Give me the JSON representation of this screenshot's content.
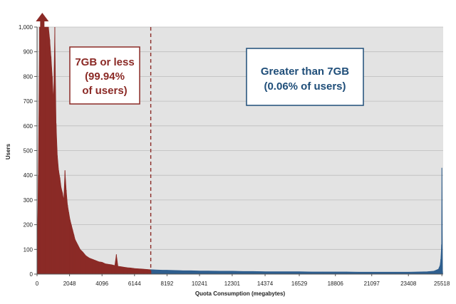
{
  "chart_data": {
    "type": "bar",
    "xlabel": "Quota Consumption (megabytes)",
    "ylabel": "Users",
    "xlim": [
      0,
      25600
    ],
    "ylim": [
      0,
      1000
    ],
    "grid": true,
    "x_tick_labels": [
      "0",
      "2048",
      "4096",
      "6144",
      "8192",
      "10241",
      "12301",
      "14374",
      "16529",
      "18806",
      "21097",
      "23408",
      "25518"
    ],
    "y_tick_labels": [
      "0",
      "100",
      "200",
      "300",
      "400",
      "500",
      "600",
      "700",
      "800",
      "900",
      "1,000"
    ],
    "threshold_mb": 7168,
    "overflow_arrow_at_mb": 330,
    "series": [
      {
        "color": "#8b2a26",
        "points": [
          [
            0,
            20
          ],
          [
            80,
            400
          ],
          [
            160,
            1000
          ],
          [
            240,
            1000
          ],
          [
            320,
            1000
          ],
          [
            400,
            1000
          ],
          [
            480,
            1000
          ],
          [
            560,
            1000
          ],
          [
            640,
            1000
          ],
          [
            720,
            1000
          ],
          [
            800,
            950
          ],
          [
            880,
            880
          ],
          [
            960,
            800
          ],
          [
            1040,
            700
          ],
          [
            1120,
            1000
          ],
          [
            1200,
            610
          ],
          [
            1280,
            480
          ],
          [
            1360,
            420
          ],
          [
            1440,
            390
          ],
          [
            1520,
            350
          ],
          [
            1600,
            330
          ],
          [
            1680,
            300
          ],
          [
            1760,
            420
          ],
          [
            1840,
            340
          ],
          [
            1920,
            280
          ],
          [
            2000,
            250
          ],
          [
            2080,
            220
          ],
          [
            2160,
            200
          ],
          [
            2240,
            180
          ],
          [
            2320,
            160
          ],
          [
            2400,
            140
          ],
          [
            2560,
            120
          ],
          [
            2720,
            100
          ],
          [
            2880,
            90
          ],
          [
            3072,
            75
          ],
          [
            3300,
            65
          ],
          [
            3500,
            60
          ],
          [
            3700,
            55
          ],
          [
            3900,
            50
          ],
          [
            4096,
            48
          ],
          [
            4300,
            42
          ],
          [
            4500,
            40
          ],
          [
            4700,
            38
          ],
          [
            4900,
            35
          ],
          [
            5000,
            80
          ],
          [
            5100,
            32
          ],
          [
            5300,
            30
          ],
          [
            5500,
            28
          ],
          [
            5700,
            26
          ],
          [
            5900,
            25
          ],
          [
            6144,
            23
          ],
          [
            6350,
            22
          ],
          [
            6550,
            21
          ],
          [
            6750,
            20
          ],
          [
            6950,
            19
          ],
          [
            7168,
            18
          ]
        ]
      },
      {
        "color": "#2e5e8e",
        "points": [
          [
            7168,
            18
          ],
          [
            7500,
            17
          ],
          [
            7900,
            16
          ],
          [
            8192,
            16
          ],
          [
            8700,
            15
          ],
          [
            9200,
            14
          ],
          [
            9700,
            14
          ],
          [
            10241,
            13
          ],
          [
            10800,
            13
          ],
          [
            11500,
            12
          ],
          [
            12301,
            12
          ],
          [
            13000,
            11
          ],
          [
            13600,
            11
          ],
          [
            14374,
            10
          ],
          [
            15000,
            10
          ],
          [
            15800,
            10
          ],
          [
            16529,
            10
          ],
          [
            17300,
            9
          ],
          [
            18000,
            9
          ],
          [
            18806,
            9
          ],
          [
            19500,
            9
          ],
          [
            20300,
            8
          ],
          [
            21097,
            8
          ],
          [
            21800,
            8
          ],
          [
            22600,
            8
          ],
          [
            23408,
            8
          ],
          [
            24000,
            9
          ],
          [
            24600,
            10
          ],
          [
            25000,
            12
          ],
          [
            25300,
            20
          ],
          [
            25400,
            35
          ],
          [
            25450,
            60
          ],
          [
            25500,
            120
          ],
          [
            25518,
            430
          ],
          [
            25560,
            10
          ]
        ]
      }
    ],
    "annotations": [
      {
        "text_lines": [
          "7GB or less",
          "(99.94%",
          "of users)"
        ],
        "color": "#8b2a26"
      },
      {
        "text_lines": [
          "Greater than 7GB",
          "(0.06% of users)"
        ],
        "color": "#1f4e79"
      }
    ]
  }
}
